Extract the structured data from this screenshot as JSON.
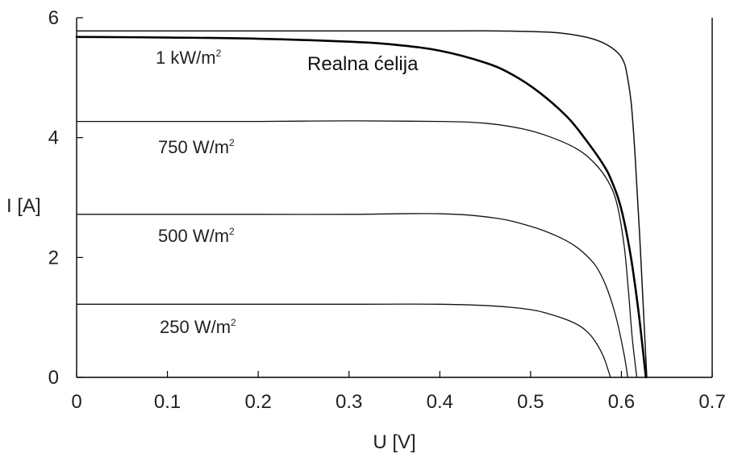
{
  "chart_data": {
    "type": "line",
    "title": "",
    "xlabel": "U [V]",
    "ylabel": "I [A]",
    "xlim": [
      0,
      0.7
    ],
    "ylim": [
      0,
      6
    ],
    "xticks": [
      0,
      0.1,
      0.2,
      0.3,
      0.4,
      0.5,
      0.6,
      0.7
    ],
    "xtick_labels": [
      "0",
      "0.1",
      "0.2",
      "0.3",
      "0.4",
      "0.5",
      "0.6",
      "0.7"
    ],
    "yticks": [
      0,
      2,
      4,
      6
    ],
    "ytick_labels": [
      "0",
      "2",
      "4",
      "6"
    ],
    "grid": false,
    "series": [
      {
        "name": "1 kW/m²",
        "label_text": "1 kW/m",
        "label_sup": "2",
        "color": "#111111",
        "stroke_width": 1.5,
        "x": [
          0,
          0.1,
          0.2,
          0.3,
          0.4,
          0.46,
          0.5,
          0.53,
          0.56,
          0.58,
          0.595,
          0.603,
          0.607,
          0.611,
          0.615,
          0.62,
          0.625,
          0.628
        ],
        "y": [
          5.78,
          5.78,
          5.78,
          5.78,
          5.78,
          5.78,
          5.77,
          5.75,
          5.68,
          5.58,
          5.43,
          5.25,
          4.98,
          4.55,
          3.72,
          2.4,
          0.9,
          0.0
        ]
      },
      {
        "name": "750 W/m²",
        "label_text": "750 W/m",
        "label_sup": "2",
        "color": "#111111",
        "stroke_width": 1.3,
        "x": [
          0,
          0.1,
          0.2,
          0.3,
          0.4,
          0.45,
          0.49,
          0.52,
          0.55,
          0.57,
          0.585,
          0.595,
          0.603,
          0.608,
          0.612,
          0.617
        ],
        "y": [
          4.27,
          4.27,
          4.27,
          4.28,
          4.27,
          4.24,
          4.15,
          4.02,
          3.82,
          3.58,
          3.28,
          2.9,
          2.2,
          1.4,
          0.65,
          0.0
        ]
      },
      {
        "name": "500 W/m²",
        "label_text": "500 W/m",
        "label_sup": "2",
        "color": "#111111",
        "stroke_width": 1.3,
        "x": [
          0,
          0.1,
          0.2,
          0.3,
          0.4,
          0.46,
          0.5,
          0.53,
          0.55,
          0.565,
          0.575,
          0.585,
          0.595,
          0.603,
          0.607
        ],
        "y": [
          2.72,
          2.72,
          2.72,
          2.72,
          2.73,
          2.66,
          2.52,
          2.35,
          2.18,
          1.98,
          1.78,
          1.45,
          0.95,
          0.38,
          0.0
        ]
      },
      {
        "name": "250 W/m²",
        "label_text": "250 W/m",
        "label_sup": "2",
        "color": "#111111",
        "stroke_width": 1.3,
        "x": [
          0,
          0.1,
          0.2,
          0.3,
          0.4,
          0.46,
          0.5,
          0.52,
          0.54,
          0.555,
          0.565,
          0.572,
          0.578,
          0.582,
          0.585,
          0.588
        ],
        "y": [
          1.22,
          1.22,
          1.22,
          1.22,
          1.22,
          1.19,
          1.13,
          1.06,
          0.96,
          0.85,
          0.72,
          0.58,
          0.42,
          0.28,
          0.14,
          0.0
        ]
      },
      {
        "name": "Realna ćelija",
        "label_text": "Realna ćelija",
        "label_sup": "",
        "color": "#000000",
        "stroke_width": 2.6,
        "x": [
          0,
          0.1,
          0.2,
          0.3,
          0.35,
          0.4,
          0.45,
          0.48,
          0.51,
          0.54,
          0.56,
          0.58,
          0.59,
          0.6,
          0.61,
          0.618,
          0.623,
          0.627
        ],
        "y": [
          5.68,
          5.67,
          5.65,
          5.6,
          5.55,
          5.45,
          5.25,
          5.05,
          4.75,
          4.35,
          3.98,
          3.55,
          3.25,
          2.8,
          2.05,
          1.2,
          0.55,
          0.0
        ]
      }
    ]
  }
}
